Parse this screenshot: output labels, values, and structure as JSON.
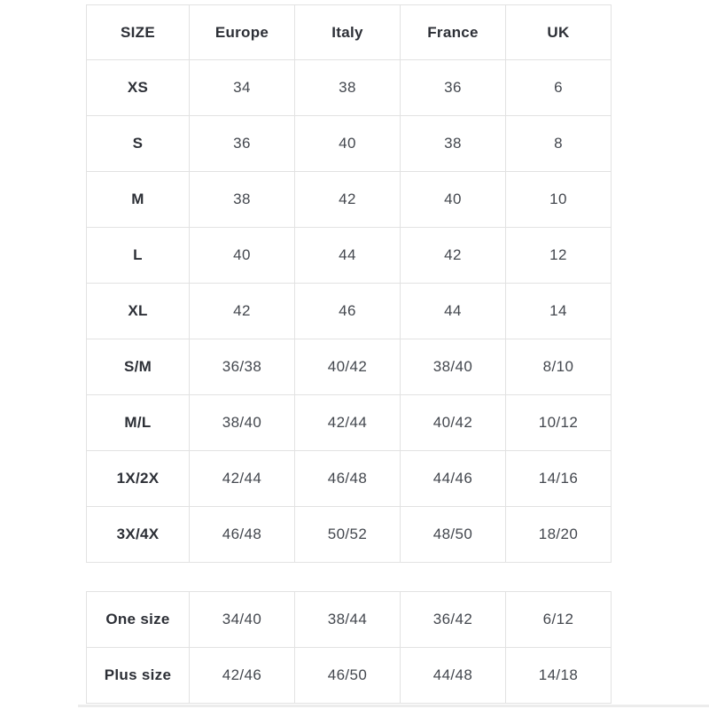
{
  "colors": {
    "page_background": "#ffffff",
    "table_border": "#e2e2e2",
    "label_text": "#2c2f36",
    "value_text": "#43474e"
  },
  "size_table": {
    "headers": [
      "SIZE",
      "Europe",
      "Italy",
      "France",
      "UK"
    ],
    "rows": [
      {
        "label": "XS",
        "cells": [
          "34",
          "38",
          "36",
          "6"
        ]
      },
      {
        "label": "S",
        "cells": [
          "36",
          "40",
          "38",
          "8"
        ]
      },
      {
        "label": "M",
        "cells": [
          "38",
          "42",
          "40",
          "10"
        ]
      },
      {
        "label": "L",
        "cells": [
          "40",
          "44",
          "42",
          "12"
        ]
      },
      {
        "label": "XL",
        "cells": [
          "42",
          "46",
          "44",
          "14"
        ]
      },
      {
        "label": "S/M",
        "cells": [
          "36/38",
          "40/42",
          "38/40",
          "8/10"
        ]
      },
      {
        "label": "M/L",
        "cells": [
          "38/40",
          "42/44",
          "40/42",
          "10/12"
        ]
      },
      {
        "label": "1X/2X",
        "cells": [
          "42/44",
          "46/48",
          "44/46",
          "14/16"
        ]
      },
      {
        "label": "3X/4X",
        "cells": [
          "46/48",
          "50/52",
          "48/50",
          "18/20"
        ]
      }
    ]
  },
  "special_table": {
    "rows": [
      {
        "label": "One size",
        "cells": [
          "34/40",
          "38/44",
          "36/42",
          "6/12"
        ]
      },
      {
        "label": "Plus size",
        "cells": [
          "42/46",
          "46/50",
          "44/48",
          "14/18"
        ]
      }
    ]
  }
}
